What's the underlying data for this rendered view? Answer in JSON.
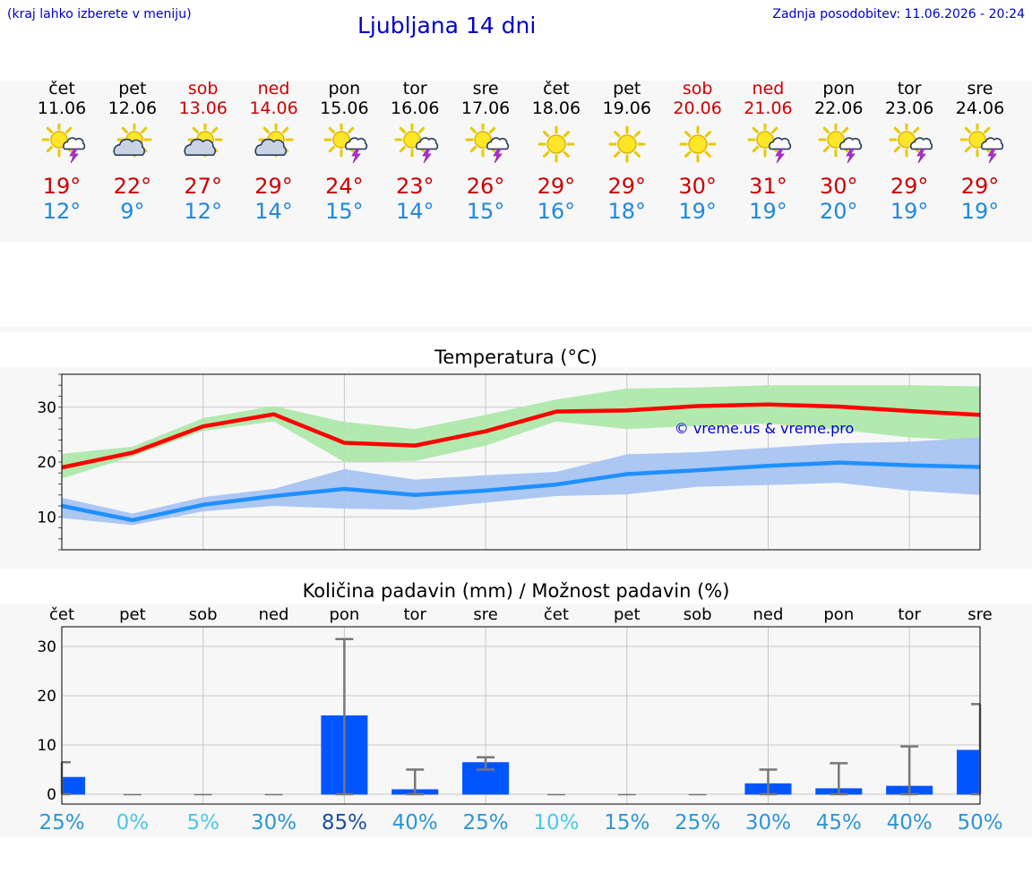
{
  "header": {
    "note": "(kraj lahko izberete v meniju)",
    "title": "Ljubljana 14 dni",
    "updated": "Zadnja posodobitev: 11.06.2026 - 20:24"
  },
  "days": [
    {
      "weekday": "čet",
      "date": "11.06",
      "icon": "sun-cloud-storm-icon",
      "tmax": "19°",
      "tmin": "12°",
      "weekend": false
    },
    {
      "weekday": "pet",
      "date": "12.06",
      "icon": "sun-cloud-icon",
      "tmax": "22°",
      "tmin": "9°",
      "weekend": false
    },
    {
      "weekday": "sob",
      "date": "13.06",
      "icon": "sun-cloud-icon",
      "tmax": "27°",
      "tmin": "12°",
      "weekend": true
    },
    {
      "weekday": "ned",
      "date": "14.06",
      "icon": "sun-cloud-icon",
      "tmax": "29°",
      "tmin": "14°",
      "weekend": true
    },
    {
      "weekday": "pon",
      "date": "15.06",
      "icon": "sun-storm-icon",
      "tmax": "24°",
      "tmin": "15°",
      "weekend": false
    },
    {
      "weekday": "tor",
      "date": "16.06",
      "icon": "sun-storm-icon",
      "tmax": "23°",
      "tmin": "14°",
      "weekend": false
    },
    {
      "weekday": "sre",
      "date": "17.06",
      "icon": "sun-storm-icon",
      "tmax": "26°",
      "tmin": "15°",
      "weekend": false
    },
    {
      "weekday": "čet",
      "date": "18.06",
      "icon": "sun-icon",
      "tmax": "29°",
      "tmin": "16°",
      "weekend": false
    },
    {
      "weekday": "pet",
      "date": "19.06",
      "icon": "sun-icon",
      "tmax": "29°",
      "tmin": "18°",
      "weekend": false
    },
    {
      "weekday": "sob",
      "date": "20.06",
      "icon": "sun-icon",
      "tmax": "30°",
      "tmin": "19°",
      "weekend": true
    },
    {
      "weekday": "ned",
      "date": "21.06",
      "icon": "sun-storm-icon",
      "tmax": "31°",
      "tmin": "19°",
      "weekend": true
    },
    {
      "weekday": "pon",
      "date": "22.06",
      "icon": "sun-storm-icon",
      "tmax": "30°",
      "tmin": "20°",
      "weekend": false
    },
    {
      "weekday": "tor",
      "date": "23.06",
      "icon": "sun-storm-icon",
      "tmax": "29°",
      "tmin": "19°",
      "weekend": false
    },
    {
      "weekday": "sre",
      "date": "24.06",
      "icon": "sun-storm-icon",
      "tmax": "29°",
      "tmin": "19°",
      "weekend": false
    }
  ],
  "colors": {
    "max": "#ff0000",
    "min": "#1e90ff",
    "max_band": "#aee8aa",
    "min_band": "#a9c4f2",
    "bar": "#0055ff",
    "error": "#777777"
  },
  "chart_data": [
    {
      "type": "line",
      "title": "Temperatura (°C)",
      "watermark": "© vreme.us & vreme.pro",
      "x": [
        "11.06",
        "12.06",
        "13.06",
        "14.06",
        "15.06",
        "16.06",
        "17.06",
        "18.06",
        "19.06",
        "20.06",
        "21.06",
        "22.06",
        "23.06",
        "24.06"
      ],
      "ylim": [
        4,
        36
      ],
      "yticks": [
        10,
        20,
        30
      ],
      "grid": true,
      "series": [
        {
          "key": "max",
          "values": [
            19,
            21.7,
            26.5,
            28.7,
            23.5,
            23,
            25.6,
            29.2,
            29.4,
            30.2,
            30.5,
            30.1,
            29.3,
            28.6
          ],
          "band_low": [
            17,
            21,
            25.7,
            27.4,
            20,
            20.2,
            23,
            27.4,
            26,
            26.6,
            27,
            25.9,
            24.5,
            23.8
          ],
          "band_high": [
            21.5,
            22.8,
            28,
            30.2,
            27.3,
            26,
            28.6,
            31.4,
            33.4,
            33.6,
            34,
            34,
            34,
            33.8
          ]
        },
        {
          "key": "min",
          "values": [
            12,
            9.4,
            12.2,
            13.8,
            15.1,
            14,
            14.8,
            15.9,
            17.8,
            18.5,
            19.3,
            19.9,
            19.4,
            19.1
          ],
          "band_low": [
            9.8,
            8.5,
            11,
            12,
            11.5,
            11.3,
            12.6,
            13.8,
            14.1,
            15.5,
            15.8,
            16.2,
            14.8,
            14
          ],
          "band_high": [
            13.5,
            10.6,
            13.6,
            15.1,
            18.7,
            16.8,
            17.6,
            18.2,
            21.4,
            21.8,
            22.6,
            23.4,
            23.7,
            24.5
          ]
        }
      ]
    },
    {
      "type": "bar",
      "title": "Količina padavin (mm) / Možnost padavin (%)",
      "categories": [
        "čet",
        "pet",
        "sob",
        "ned",
        "pon",
        "tor",
        "sre",
        "čet",
        "pet",
        "sob",
        "ned",
        "pon",
        "tor",
        "sre"
      ],
      "values": [
        3.5,
        0,
        0,
        0,
        16,
        1,
        6.5,
        0,
        0,
        0,
        2.2,
        1.2,
        1.7,
        9
      ],
      "error_high": [
        6.5,
        0,
        0,
        0,
        31.5,
        5,
        7.5,
        0,
        0,
        0,
        5,
        6.3,
        9.7,
        18.3
      ],
      "error_low": [
        0,
        0,
        0,
        0,
        0,
        0,
        5,
        0,
        0,
        0,
        0,
        0,
        0,
        0
      ],
      "probability": [
        "25%",
        "0%",
        "5%",
        "30%",
        "85%",
        "40%",
        "25%",
        "10%",
        "15%",
        "25%",
        "30%",
        "45%",
        "40%",
        "50%"
      ],
      "ylim": [
        -2,
        34
      ],
      "yticks": [
        0,
        10,
        20,
        30
      ],
      "grid": true
    }
  ]
}
